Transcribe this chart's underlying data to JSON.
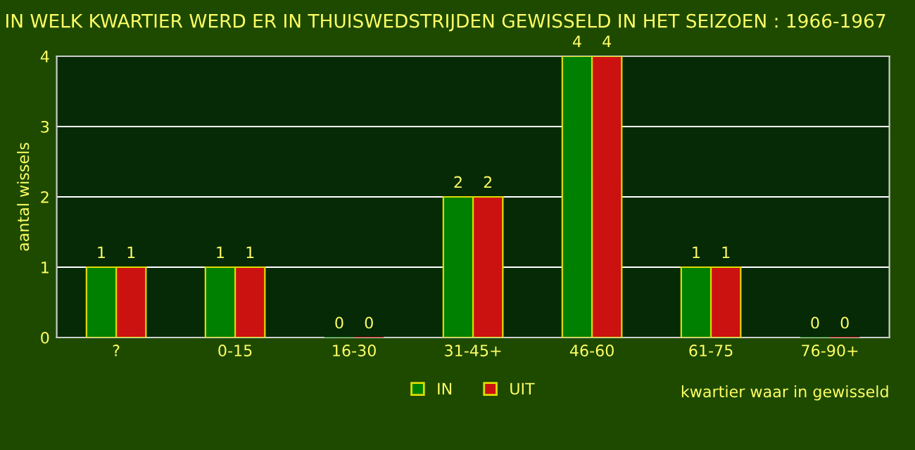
{
  "chart_data": {
    "type": "bar",
    "title": "IN WELK KWARTIER WERD ER IN THUISWEDSTRIJDEN GEWISSELD IN HET SEIZOEN : 1966-1967",
    "categories": [
      "?",
      "0-15",
      "16-30",
      "31-45+",
      "46-60",
      "61-75",
      "76-90+"
    ],
    "series": [
      {
        "name": "IN",
        "color": "#008000",
        "values": [
          1,
          1,
          0,
          2,
          4,
          1,
          0
        ]
      },
      {
        "name": "UIT",
        "color": "#cc1111",
        "values": [
          1,
          1,
          0,
          2,
          4,
          1,
          0
        ]
      }
    ],
    "xlabel": "kwartier waar in gewisseld",
    "ylabel": "aantal wissels",
    "ylim": [
      0,
      4
    ],
    "yticks": [
      0,
      1,
      2,
      3,
      4
    ],
    "grid": "y",
    "legend": "bottom",
    "data_labels": true
  }
}
